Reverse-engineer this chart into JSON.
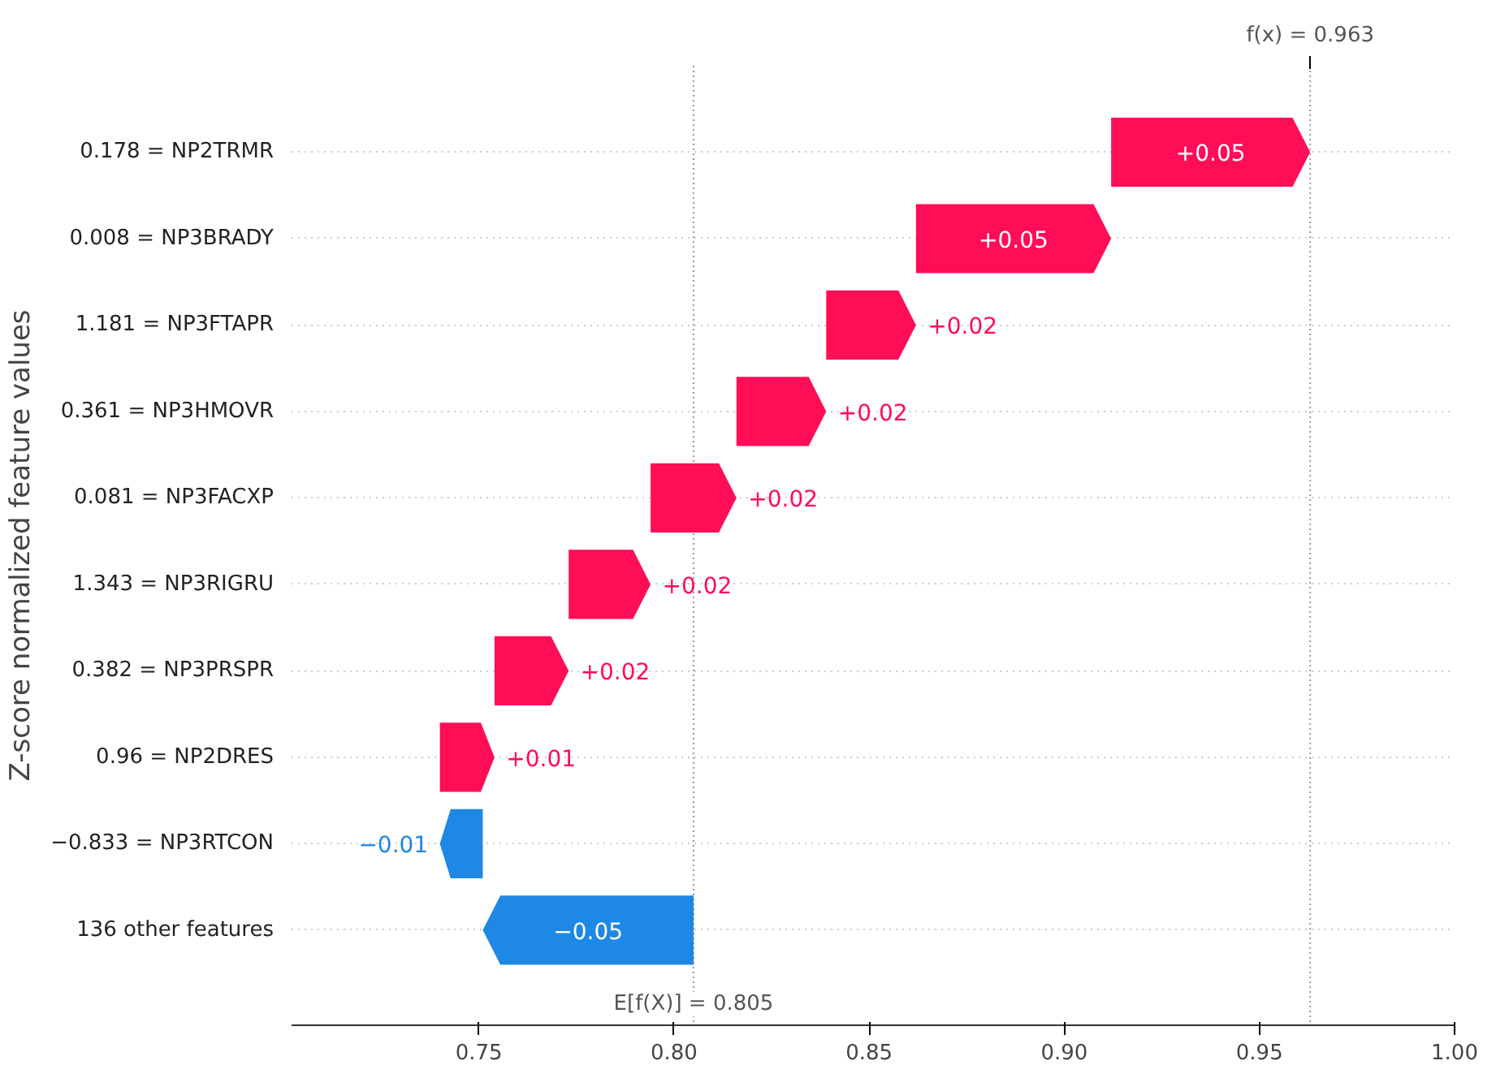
{
  "chart_data": {
    "type": "bar",
    "orientation": "horizontal",
    "ylabel": "Z-score normalized feature values",
    "categories": [
      "0.178 = NP2TRMR",
      "0.008 = NP3BRADY",
      "1.181 = NP3FTAPR",
      "0.361 = NP3HMOVR",
      "0.081 = NP3FACXP",
      "1.343 = NP3RIGRU",
      "0.382 = NP3PRSPR",
      "0.96 = NP2DRES",
      "−0.833 = NP3RTCON",
      "136 other features"
    ],
    "base": [
      0.912,
      0.862,
      0.839,
      0.816,
      0.794,
      0.773,
      0.754,
      0.74,
      0.751,
      0.805
    ],
    "values": [
      0.051,
      0.05,
      0.023,
      0.023,
      0.022,
      0.021,
      0.019,
      0.014,
      -0.011,
      -0.054
    ],
    "value_labels": [
      "+0.05",
      "+0.05",
      "+0.02",
      "+0.02",
      "+0.02",
      "+0.02",
      "+0.02",
      "+0.01",
      "−0.01",
      "−0.05"
    ],
    "colors": [
      "#ff0d57",
      "#ff0d57",
      "#ff0d57",
      "#ff0d57",
      "#ff0d57",
      "#ff0d57",
      "#ff0d57",
      "#ff0d57",
      "#1e88e5",
      "#1e88e5"
    ],
    "xlim": [
      0.702,
      1.0
    ],
    "xticks": [
      0.75,
      {
        "value": 0.8,
        "label": "0.80"
      },
      0.85,
      {
        "value": 0.9,
        "label": "0.90"
      },
      0.95,
      {
        "value": 1.0,
        "label": "1.00"
      }
    ],
    "ref_lines": [
      {
        "axis": "x",
        "value": 0.963,
        "label": "f(x) = 0.963",
        "color": "#999999",
        "line_style": "dotted"
      },
      {
        "axis": "x",
        "value": 0.805,
        "label": "E[f(X)] = 0.805",
        "color": "#999999",
        "line_style": "dotted"
      }
    ],
    "grid": "y"
  }
}
